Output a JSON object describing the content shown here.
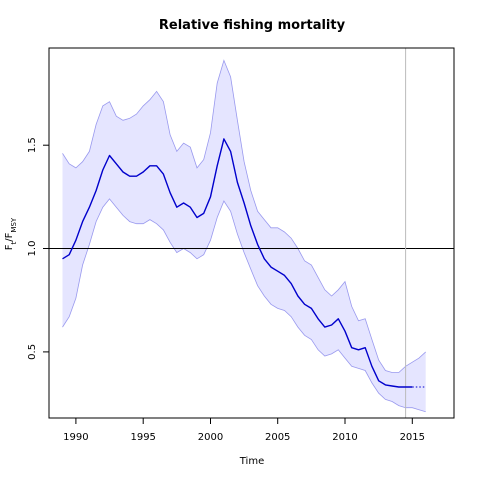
{
  "chart_data": {
    "type": "line",
    "title": "Relative fishing mortality",
    "xlabel": "Time",
    "ylabel": {
      "main": "F",
      "sub1": "t",
      "sep": "/F",
      "sub2": "MSY"
    },
    "xlim": [
      1988.0,
      2018.1
    ],
    "ylim": [
      0.18,
      1.97
    ],
    "xticks": [
      1990,
      1995,
      2000,
      2005,
      2010,
      2015
    ],
    "yticks": [
      0.5,
      1.0,
      1.5
    ],
    "ytick_labels": [
      "0.5",
      "1.0",
      "1.5"
    ],
    "reference_line_y": 1.0,
    "vertical_line_x": 2014.5,
    "colors": {
      "line": "#0000cc",
      "band_fill": "#e5e5ff",
      "band_edge": "#9999ee",
      "ref": "#000000",
      "vline": "#bbbbbb"
    },
    "series": [
      {
        "name": "",
        "style": "solid",
        "x": [
          1989,
          1989.5,
          1990,
          1990.5,
          1991,
          1991.5,
          1992,
          1992.5,
          1993,
          1993.5,
          1994,
          1994.5,
          1995,
          1995.5,
          1996,
          1996.5,
          1997,
          1997.5,
          1998,
          1998.5,
          1999,
          1999.5,
          2000,
          2000.5,
          2001,
          2001.5,
          2002,
          2002.5,
          2003,
          2003.5,
          2004,
          2004.5,
          2005,
          2005.5,
          2006,
          2006.5,
          2007,
          2007.5,
          2008,
          2008.5,
          2009,
          2009.5,
          2010,
          2010.5,
          2011,
          2011.5,
          2012,
          2012.5,
          2013,
          2013.5,
          2014,
          2014.5,
          2015
        ],
        "y": [
          0.95,
          0.97,
          1.04,
          1.13,
          1.2,
          1.28,
          1.38,
          1.45,
          1.41,
          1.37,
          1.35,
          1.35,
          1.37,
          1.4,
          1.4,
          1.36,
          1.27,
          1.2,
          1.22,
          1.2,
          1.15,
          1.17,
          1.25,
          1.4,
          1.53,
          1.47,
          1.32,
          1.22,
          1.11,
          1.02,
          0.95,
          0.91,
          0.89,
          0.87,
          0.83,
          0.77,
          0.73,
          0.71,
          0.66,
          0.62,
          0.63,
          0.66,
          0.6,
          0.52,
          0.51,
          0.52,
          0.43,
          0.36,
          0.34,
          0.335,
          0.33,
          0.33,
          0.33
        ]
      },
      {
        "name": "",
        "style": "dotted",
        "x": [
          2015,
          2016
        ],
        "y": [
          0.33,
          0.33
        ]
      }
    ],
    "band": {
      "x": [
        1989,
        1989.5,
        1990,
        1990.5,
        1991,
        1991.5,
        1992,
        1992.5,
        1993,
        1993.5,
        1994,
        1994.5,
        1995,
        1995.5,
        1996,
        1996.5,
        1997,
        1997.5,
        1998,
        1998.5,
        1999,
        1999.5,
        2000,
        2000.5,
        2001,
        2001.5,
        2002,
        2002.5,
        2003,
        2003.5,
        2004,
        2004.5,
        2005,
        2005.5,
        2006,
        2006.5,
        2007,
        2007.5,
        2008,
        2008.5,
        2009,
        2009.5,
        2010,
        2010.5,
        2011,
        2011.5,
        2012,
        2012.5,
        2013,
        2013.5,
        2014,
        2014.5,
        2015,
        2015.5,
        2016
      ],
      "upper": [
        1.46,
        1.41,
        1.39,
        1.42,
        1.47,
        1.6,
        1.69,
        1.71,
        1.64,
        1.62,
        1.63,
        1.65,
        1.69,
        1.72,
        1.76,
        1.71,
        1.55,
        1.47,
        1.51,
        1.49,
        1.39,
        1.43,
        1.56,
        1.8,
        1.91,
        1.83,
        1.62,
        1.42,
        1.28,
        1.18,
        1.14,
        1.1,
        1.1,
        1.08,
        1.05,
        1.0,
        0.94,
        0.92,
        0.86,
        0.8,
        0.77,
        0.8,
        0.84,
        0.72,
        0.65,
        0.66,
        0.56,
        0.46,
        0.41,
        0.4,
        0.4,
        0.43,
        0.45,
        0.47,
        0.5
      ],
      "lower": [
        0.62,
        0.67,
        0.76,
        0.92,
        1.02,
        1.13,
        1.2,
        1.24,
        1.2,
        1.16,
        1.13,
        1.12,
        1.12,
        1.14,
        1.12,
        1.09,
        1.03,
        0.98,
        1.0,
        0.98,
        0.95,
        0.97,
        1.04,
        1.15,
        1.23,
        1.18,
        1.07,
        0.98,
        0.9,
        0.82,
        0.77,
        0.73,
        0.71,
        0.7,
        0.67,
        0.62,
        0.58,
        0.56,
        0.51,
        0.48,
        0.49,
        0.51,
        0.47,
        0.43,
        0.42,
        0.41,
        0.35,
        0.3,
        0.27,
        0.26,
        0.24,
        0.23,
        0.23,
        0.22,
        0.21
      ]
    }
  }
}
